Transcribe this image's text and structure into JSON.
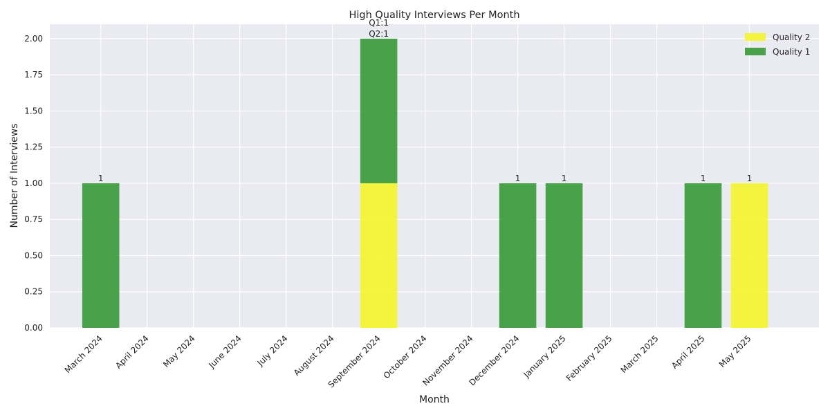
{
  "chart_data": {
    "type": "bar",
    "stacked": true,
    "title": "High Quality Interviews Per Month",
    "xlabel": "Month",
    "ylabel": "Number of Interviews",
    "categories": [
      "March 2024",
      "April 2024",
      "May 2024",
      "June 2024",
      "July 2024",
      "August 2024",
      "September 2024",
      "October 2024",
      "November 2024",
      "December 2024",
      "January 2025",
      "February 2025",
      "March 2025",
      "April 2025",
      "May 2025"
    ],
    "series": [
      {
        "name": "Quality 2",
        "color": "#f5f52a",
        "values": [
          0,
          0,
          0,
          0,
          0,
          0,
          1,
          0,
          0,
          0,
          0,
          0,
          0,
          0,
          1
        ]
      },
      {
        "name": "Quality 1",
        "color": "#369a36",
        "values": [
          1,
          0,
          0,
          0,
          0,
          0,
          1,
          0,
          0,
          1,
          1,
          0,
          0,
          1,
          0
        ]
      }
    ],
    "yticks": [
      "0.00",
      "0.25",
      "0.50",
      "0.75",
      "1.00",
      "1.25",
      "1.50",
      "1.75",
      "2.00"
    ],
    "ylim": [
      0,
      2.1
    ],
    "xlim": [
      -1.1,
      15.5
    ],
    "grid": true,
    "legend": "top-right",
    "bar_labels": [
      {
        "index": 0,
        "lines": [
          "1"
        ]
      },
      {
        "index": 6,
        "lines": [
          "Q1:1",
          "Q2:1"
        ]
      },
      {
        "index": 9,
        "lines": [
          "1"
        ]
      },
      {
        "index": 10,
        "lines": [
          "1"
        ]
      },
      {
        "index": 13,
        "lines": [
          "1"
        ]
      },
      {
        "index": 14,
        "lines": [
          "1"
        ]
      }
    ],
    "legend_order": [
      0,
      1
    ],
    "background_color": "#eaeaf2",
    "grid_color": "#ffffff"
  }
}
